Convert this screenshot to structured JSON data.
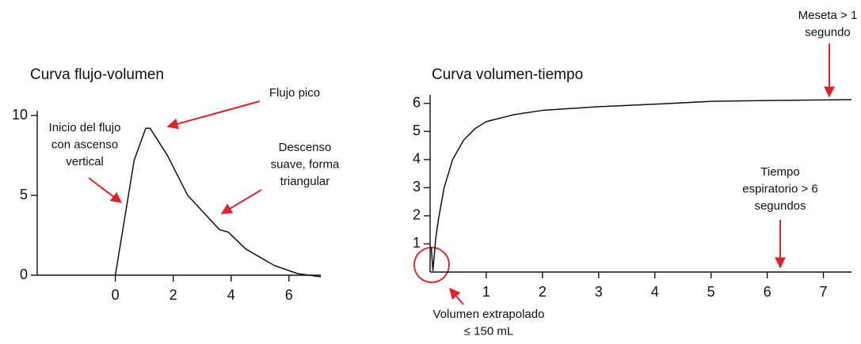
{
  "chart_data": [
    {
      "type": "line",
      "title": "Curva flujo-volumen",
      "x": [
        0,
        0.65,
        1.05,
        1.2,
        1.8,
        2.5,
        3.6,
        3.9,
        4.5,
        5.5,
        6.3,
        7.1
      ],
      "series": [
        {
          "name": "Flujo",
          "color": "#111111",
          "values": [
            0,
            7.2,
            9.2,
            9.2,
            7.5,
            5.0,
            2.85,
            2.7,
            1.65,
            0.6,
            0.1,
            -0.1
          ]
        }
      ],
      "xlim": [
        -2.7,
        7.1
      ],
      "ylim": [
        0,
        10.3
      ],
      "xticks": [
        0,
        2,
        4,
        6
      ],
      "yticks": [
        0,
        5,
        10
      ],
      "annotations": [
        {
          "text": [
            "Flujo pico"
          ]
        },
        {
          "text": [
            "Inicio del flujo",
            "con ascenso",
            "vertical"
          ]
        },
        {
          "text": [
            "Descenso",
            "suave, forma",
            "triangular"
          ]
        }
      ]
    },
    {
      "type": "line",
      "title": "Curva volumen-tiempo",
      "x": [
        0.02,
        0.05,
        0.1,
        0.15,
        0.25,
        0.4,
        0.6,
        0.8,
        1,
        1.5,
        2,
        3,
        4,
        5,
        6,
        7,
        7.5
      ],
      "series": [
        {
          "name": "Volumen",
          "color": "#111111",
          "values": [
            0.9,
            0.05,
            1.2,
            1.9,
            3.0,
            4.0,
            4.7,
            5.1,
            5.35,
            5.6,
            5.75,
            5.88,
            5.97,
            6.07,
            6.1,
            6.12,
            6.13
          ]
        }
      ],
      "xlim": [
        0,
        7.5
      ],
      "ylim": [
        0,
        6.3
      ],
      "xticks": [
        1,
        2,
        3,
        4,
        5,
        6,
        7
      ],
      "yticks": [
        1,
        2,
        3,
        4,
        5,
        6
      ],
      "annotations": [
        {
          "text": [
            "Meseta > 1",
            "segundo"
          ]
        },
        {
          "text": [
            "Tiempo",
            "espiratorio > 6",
            "segundos"
          ]
        },
        {
          "text": [
            "Volumen extrapolado",
            "≤ 150 mL"
          ]
        }
      ]
    }
  ]
}
